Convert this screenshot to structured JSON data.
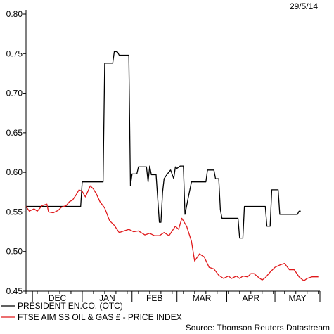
{
  "date": "29/5/14",
  "source": "Source: Thomson Reuters Datastream",
  "chart_data": {
    "type": "line",
    "xlabel": "",
    "ylabel": "",
    "ylim": [
      0.45,
      0.8
    ],
    "yticks": [
      0.45,
      0.5,
      0.55,
      0.6,
      0.65,
      0.7,
      0.75,
      0.8
    ],
    "ytick_labels": [
      "0.45",
      "0.50",
      "0.55",
      "0.60",
      "0.65",
      "0.70",
      "0.75",
      "0.80"
    ],
    "x_months": [
      "DEC",
      "JAN",
      "FEB",
      "MAR",
      "APR",
      "MAY"
    ],
    "x_period": "2013-11-27 to 2014-05-29",
    "grid": false,
    "legend_placement": "bottom-left",
    "series": [
      {
        "name": "PRESIDENT EN.CO. (OTC)",
        "color": "#000000",
        "points": [
          [
            "2013-11-27",
            0.557
          ],
          [
            "2013-12-31",
            0.557
          ],
          [
            "2014-01-01",
            0.588
          ],
          [
            "2014-01-14",
            0.588
          ],
          [
            "2014-01-15",
            0.738
          ],
          [
            "2014-01-20",
            0.738
          ],
          [
            "2014-01-21",
            0.753
          ],
          [
            "2014-01-23",
            0.752
          ],
          [
            "2014-01-24",
            0.748
          ],
          [
            "2014-01-30",
            0.748
          ],
          [
            "2014-01-31",
            0.583
          ],
          [
            "2014-02-01",
            0.598
          ],
          [
            "2014-02-04",
            0.598
          ],
          [
            "2014-02-05",
            0.607
          ],
          [
            "2014-02-10",
            0.607
          ],
          [
            "2014-02-11",
            0.588
          ],
          [
            "2014-02-12",
            0.608
          ],
          [
            "2014-02-13",
            0.597
          ],
          [
            "2014-02-16",
            0.597
          ],
          [
            "2014-02-18",
            0.537
          ],
          [
            "2014-02-19",
            0.537
          ],
          [
            "2014-02-20",
            0.575
          ],
          [
            "2014-02-21",
            0.592
          ],
          [
            "2014-02-23",
            0.598
          ],
          [
            "2014-02-25",
            0.603
          ],
          [
            "2014-02-27",
            0.592
          ],
          [
            "2014-02-28",
            0.607
          ],
          [
            "2014-03-01",
            0.605
          ],
          [
            "2014-03-03",
            0.608
          ],
          [
            "2014-03-05",
            0.608
          ],
          [
            "2014-03-06",
            0.547
          ],
          [
            "2014-03-08",
            0.568
          ],
          [
            "2014-03-10",
            0.588
          ],
          [
            "2014-03-19",
            0.588
          ],
          [
            "2014-03-20",
            0.603
          ],
          [
            "2014-03-24",
            0.603
          ],
          [
            "2014-03-25",
            0.592
          ],
          [
            "2014-03-27",
            0.592
          ],
          [
            "2014-03-28",
            0.553
          ],
          [
            "2014-03-29",
            0.542
          ],
          [
            "2014-04-08",
            0.542
          ],
          [
            "2014-04-09",
            0.517
          ],
          [
            "2014-04-11",
            0.517
          ],
          [
            "2014-04-12",
            0.557
          ],
          [
            "2014-04-25",
            0.557
          ],
          [
            "2014-04-26",
            0.532
          ],
          [
            "2014-04-28",
            0.532
          ],
          [
            "2014-04-29",
            0.578
          ],
          [
            "2014-05-03",
            0.578
          ],
          [
            "2014-05-04",
            0.547
          ],
          [
            "2014-05-15",
            0.547
          ],
          [
            "2014-05-16",
            0.551
          ],
          [
            "2014-05-17",
            0.551
          ]
        ]
      },
      {
        "name": "FTSE AIM SS OIL & GAS £ - PRICE INDEX",
        "color": "#e0191b",
        "points": [
          [
            "2013-11-27",
            0.557
          ],
          [
            "2013-11-29",
            0.551
          ],
          [
            "2013-12-02",
            0.554
          ],
          [
            "2013-12-04",
            0.551
          ],
          [
            "2013-12-07",
            0.558
          ],
          [
            "2013-12-10",
            0.56
          ],
          [
            "2013-12-11",
            0.55
          ],
          [
            "2013-12-14",
            0.549
          ],
          [
            "2013-12-17",
            0.552
          ],
          [
            "2013-12-19",
            0.556
          ],
          [
            "2013-12-22",
            0.558
          ],
          [
            "2013-12-24",
            0.563
          ],
          [
            "2013-12-26",
            0.565
          ],
          [
            "2013-12-28",
            0.571
          ],
          [
            "2013-12-30",
            0.578
          ],
          [
            "2014-01-01",
            0.576
          ],
          [
            "2014-01-03",
            0.569
          ],
          [
            "2014-01-06",
            0.583
          ],
          [
            "2014-01-08",
            0.579
          ],
          [
            "2014-01-10",
            0.572
          ],
          [
            "2014-01-12",
            0.563
          ],
          [
            "2014-01-15",
            0.555
          ],
          [
            "2014-01-18",
            0.539
          ],
          [
            "2014-01-21",
            0.533
          ],
          [
            "2014-01-24",
            0.524
          ],
          [
            "2014-01-27",
            0.526
          ],
          [
            "2014-01-30",
            0.528
          ],
          [
            "2014-02-02",
            0.525
          ],
          [
            "2014-02-05",
            0.526
          ],
          [
            "2014-02-09",
            0.521
          ],
          [
            "2014-02-12",
            0.523
          ],
          [
            "2014-02-15",
            0.52
          ],
          [
            "2014-02-18",
            0.52
          ],
          [
            "2014-02-21",
            0.524
          ],
          [
            "2014-02-24",
            0.52
          ],
          [
            "2014-02-28",
            0.532
          ],
          [
            "2014-03-02",
            0.528
          ],
          [
            "2014-03-04",
            0.542
          ],
          [
            "2014-03-07",
            0.532
          ],
          [
            "2014-03-10",
            0.513
          ],
          [
            "2014-03-12",
            0.488
          ],
          [
            "2014-03-15",
            0.497
          ],
          [
            "2014-03-18",
            0.493
          ],
          [
            "2014-03-21",
            0.48
          ],
          [
            "2014-03-24",
            0.478
          ],
          [
            "2014-03-27",
            0.47
          ],
          [
            "2014-03-30",
            0.466
          ],
          [
            "2014-04-02",
            0.469
          ],
          [
            "2014-04-04",
            0.466
          ],
          [
            "2014-04-07",
            0.469
          ],
          [
            "2014-04-09",
            0.466
          ],
          [
            "2014-04-11",
            0.469
          ],
          [
            "2014-04-14",
            0.468
          ],
          [
            "2014-04-16",
            0.472
          ],
          [
            "2014-04-18",
            0.472
          ],
          [
            "2014-04-21",
            0.467
          ],
          [
            "2014-04-23",
            0.464
          ],
          [
            "2014-04-25",
            0.467
          ],
          [
            "2014-04-28",
            0.474
          ],
          [
            "2014-05-01",
            0.48
          ],
          [
            "2014-05-04",
            0.483
          ],
          [
            "2014-05-07",
            0.485
          ],
          [
            "2014-05-10",
            0.477
          ],
          [
            "2014-05-13",
            0.477
          ],
          [
            "2014-05-16",
            0.468
          ],
          [
            "2014-05-19",
            0.463
          ],
          [
            "2014-05-21",
            0.466
          ],
          [
            "2014-05-24",
            0.468
          ],
          [
            "2014-05-28",
            0.468
          ]
        ]
      }
    ]
  }
}
